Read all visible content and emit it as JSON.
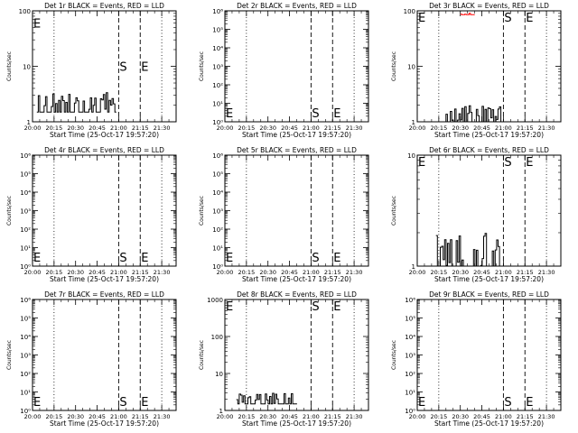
{
  "chart_data": [
    {
      "type": "line",
      "title": "Det 1r BLACK = Events, RED = LLD",
      "xlabel": "Start Time (25-Oct-17 19:57:20)",
      "ylabel": "Counts/sec",
      "log_y": true,
      "ylim": [
        1,
        100
      ],
      "yticks": [
        {
          "v": 1,
          "label": "1"
        },
        {
          "v": 10,
          "label": "10"
        },
        {
          "v": 100,
          "label": "100"
        }
      ],
      "x_ticks": [
        "20:00",
        "20:15",
        "20:30",
        "20:45",
        "21:00",
        "21:15",
        "21:30"
      ],
      "xlim": [
        "20:00",
        "21:40"
      ],
      "markers": [
        {
          "label": "S",
          "time": "21:00"
        },
        {
          "label": "E",
          "time": "21:15"
        }
      ],
      "marker_label_y": 10,
      "e_left_y": 60,
      "series": [
        {
          "color": "#000000",
          "segments": [
            {
              "start": "20:03",
              "end": "20:58",
              "low": 1.5,
              "high": 3.5
            }
          ]
        }
      ]
    },
    {
      "type": "line",
      "title": "Det 2r BLACK = Events, RED = LLD",
      "xlabel": "Start Time (25-Oct-17 19:57:20)",
      "ylabel": "Counts/sec",
      "log_y": true,
      "ylim": [
        1,
        1000000
      ],
      "yticks": [
        {
          "v": 1,
          "label": "10⁰"
        },
        {
          "v": 10,
          "label": "10¹"
        },
        {
          "v": 100,
          "label": "10²"
        },
        {
          "v": 1000,
          "label": "10³"
        },
        {
          "v": 10000,
          "label": "10⁴"
        },
        {
          "v": 100000,
          "label": "10⁵"
        },
        {
          "v": 1000000,
          "label": "10⁶"
        }
      ],
      "x_ticks": [
        "20:00",
        "20:15",
        "20:30",
        "20:45",
        "21:00",
        "21:15",
        "21:30"
      ],
      "xlim": [
        "20:00",
        "21:40"
      ],
      "markers": [
        {
          "label": "S",
          "time": "21:00"
        },
        {
          "label": "E",
          "time": "21:15"
        }
      ],
      "marker_label_y": 3,
      "e_left_y": 3,
      "series": []
    },
    {
      "type": "line",
      "title": "Det 3r BLACK = Events, RED = LLD",
      "xlabel": "Start Time (25-Oct-17 19:57:20)",
      "ylabel": "Counts/sec",
      "log_y": true,
      "ylim": [
        1,
        100
      ],
      "yticks": [
        {
          "v": 1,
          "label": "1"
        },
        {
          "v": 10,
          "label": "10"
        },
        {
          "v": 100,
          "label": "100"
        }
      ],
      "x_ticks": [
        "20:00",
        "20:15",
        "20:30",
        "20:45",
        "21:00",
        "21:15",
        "21:30"
      ],
      "xlim": [
        "20:00",
        "21:40"
      ],
      "markers": [
        {
          "label": "S",
          "time": "21:00"
        },
        {
          "label": "E",
          "time": "21:15"
        }
      ],
      "marker_label_y": 95,
      "e_left_y": 95,
      "series": [
        {
          "color": "#000000",
          "segments": [
            {
              "start": "20:18",
              "end": "20:59",
              "low": 1,
              "high": 2
            }
          ]
        },
        {
          "color": "#ff0000",
          "segments": [
            {
              "start": "20:30",
              "end": "20:40",
              "low": 85,
              "high": 95
            }
          ]
        }
      ]
    },
    {
      "type": "line",
      "title": "Det 4r BLACK = Events, RED = LLD",
      "xlabel": "Start Time (25-Oct-17 19:57:20)",
      "ylabel": "Counts/sec",
      "log_y": true,
      "ylim": [
        1,
        1000000
      ],
      "yticks": [
        {
          "v": 1,
          "label": "10⁰"
        },
        {
          "v": 10,
          "label": "10¹"
        },
        {
          "v": 100,
          "label": "10²"
        },
        {
          "v": 1000,
          "label": "10³"
        },
        {
          "v": 10000,
          "label": "10⁴"
        },
        {
          "v": 100000,
          "label": "10⁵"
        },
        {
          "v": 1000000,
          "label": "10⁶"
        }
      ],
      "x_ticks": [
        "20:00",
        "20:15",
        "20:30",
        "20:45",
        "21:00",
        "21:15",
        "21:30"
      ],
      "xlim": [
        "20:00",
        "21:40"
      ],
      "markers": [
        {
          "label": "S",
          "time": "21:00"
        },
        {
          "label": "E",
          "time": "21:15"
        }
      ],
      "marker_label_y": 3,
      "e_left_y": 3,
      "series": []
    },
    {
      "type": "line",
      "title": "Det 5r BLACK = Events, RED = LLD",
      "xlabel": "Start Time (25-Oct-17 19:57:20)",
      "ylabel": "Counts/sec",
      "log_y": true,
      "ylim": [
        1,
        1000000
      ],
      "yticks": [
        {
          "v": 1,
          "label": "10⁰"
        },
        {
          "v": 10,
          "label": "10¹"
        },
        {
          "v": 100,
          "label": "10²"
        },
        {
          "v": 1000,
          "label": "10³"
        },
        {
          "v": 10000,
          "label": "10⁴"
        },
        {
          "v": 100000,
          "label": "10⁵"
        },
        {
          "v": 1000000,
          "label": "10⁶"
        }
      ],
      "x_ticks": [
        "20:00",
        "20:15",
        "20:30",
        "20:45",
        "21:00",
        "21:15",
        "21:30"
      ],
      "xlim": [
        "20:00",
        "21:40"
      ],
      "markers": [
        {
          "label": "S",
          "time": "21:00"
        },
        {
          "label": "E",
          "time": "21:15"
        }
      ],
      "marker_label_y": 3,
      "e_left_y": 3,
      "series": []
    },
    {
      "type": "line",
      "title": "Det 6r BLACK = Events, RED = LLD",
      "xlabel": "Start Time (25-Oct-17 19:57:20)",
      "ylabel": "Counts/sec",
      "log_y": true,
      "ylim": [
        1,
        10
      ],
      "yticks": [
        {
          "v": 1,
          "label": "1"
        },
        {
          "v": 10,
          "label": "10"
        }
      ],
      "x_ticks": [
        "20:00",
        "20:15",
        "20:30",
        "20:45",
        "21:00",
        "21:15",
        "21:30"
      ],
      "xlim": [
        "20:00",
        "21:40"
      ],
      "markers": [
        {
          "label": "S",
          "time": "21:00"
        },
        {
          "label": "E",
          "time": "21:15"
        }
      ],
      "marker_label_y": 9,
      "e_left_y": 9,
      "series": [
        {
          "color": "#000000",
          "segments": [
            {
              "start": "20:13",
              "end": "20:59",
              "low": 1,
              "high": 2
            }
          ]
        }
      ]
    },
    {
      "type": "line",
      "title": "Det 7r BLACK = Events, RED = LLD",
      "xlabel": "Start Time (25-Oct-17 19:57:20)",
      "ylabel": "Counts/sec",
      "log_y": true,
      "ylim": [
        1,
        1000000
      ],
      "yticks": [
        {
          "v": 1,
          "label": "10⁰"
        },
        {
          "v": 10,
          "label": "10¹"
        },
        {
          "v": 100,
          "label": "10²"
        },
        {
          "v": 1000,
          "label": "10³"
        },
        {
          "v": 10000,
          "label": "10⁴"
        },
        {
          "v": 100000,
          "label": "10⁵"
        },
        {
          "v": 1000000,
          "label": "10⁶"
        }
      ],
      "x_ticks": [
        "20:00",
        "20:15",
        "20:30",
        "20:45",
        "21:00",
        "21:15",
        "21:30"
      ],
      "xlim": [
        "20:00",
        "21:40"
      ],
      "markers": [
        {
          "label": "S",
          "time": "21:00"
        },
        {
          "label": "E",
          "time": "21:15"
        }
      ],
      "marker_label_y": 3,
      "e_left_y": 3,
      "series": []
    },
    {
      "type": "line",
      "title": "Det 8r BLACK = Events, RED = LLD",
      "xlabel": "Start Time (25-Oct-17 19:57:20)",
      "ylabel": "Counts/sec",
      "log_y": true,
      "ylim": [
        1,
        1000
      ],
      "yticks": [
        {
          "v": 1,
          "label": "1"
        },
        {
          "v": 10,
          "label": "10"
        },
        {
          "v": 100,
          "label": "100"
        },
        {
          "v": 1000,
          "label": "1000"
        }
      ],
      "x_ticks": [
        "20:00",
        "20:15",
        "20:30",
        "20:45",
        "21:00",
        "21:15",
        "21:30"
      ],
      "xlim": [
        "20:00",
        "21:40"
      ],
      "markers": [
        {
          "label": "S",
          "time": "21:00"
        },
        {
          "label": "E",
          "time": "21:15"
        }
      ],
      "marker_label_y": 900,
      "e_left_y": 900,
      "series": [
        {
          "color": "#000000",
          "segments": [
            {
              "start": "20:08",
              "end": "20:50",
              "low": 1.5,
              "high": 3
            }
          ]
        }
      ]
    },
    {
      "type": "line",
      "title": "Det 9r BLACK = Events, RED = LLD",
      "xlabel": "Start Time (25-Oct-17 19:57:20)",
      "ylabel": "Counts/sec",
      "log_y": true,
      "ylim": [
        1,
        1000000
      ],
      "yticks": [
        {
          "v": 1,
          "label": "10⁰"
        },
        {
          "v": 10,
          "label": "10¹"
        },
        {
          "v": 100,
          "label": "10²"
        },
        {
          "v": 1000,
          "label": "10³"
        },
        {
          "v": 10000,
          "label": "10⁴"
        },
        {
          "v": 100000,
          "label": "10⁵"
        },
        {
          "v": 1000000,
          "label": "10⁶"
        }
      ],
      "x_ticks": [
        "20:00",
        "20:15",
        "20:30",
        "20:45",
        "21:00",
        "21:15",
        "21:30"
      ],
      "xlim": [
        "20:00",
        "21:40"
      ],
      "markers": [
        {
          "label": "S",
          "time": "21:00"
        },
        {
          "label": "E",
          "time": "21:15"
        }
      ],
      "marker_label_y": 3,
      "e_left_y": 3,
      "series": []
    }
  ]
}
